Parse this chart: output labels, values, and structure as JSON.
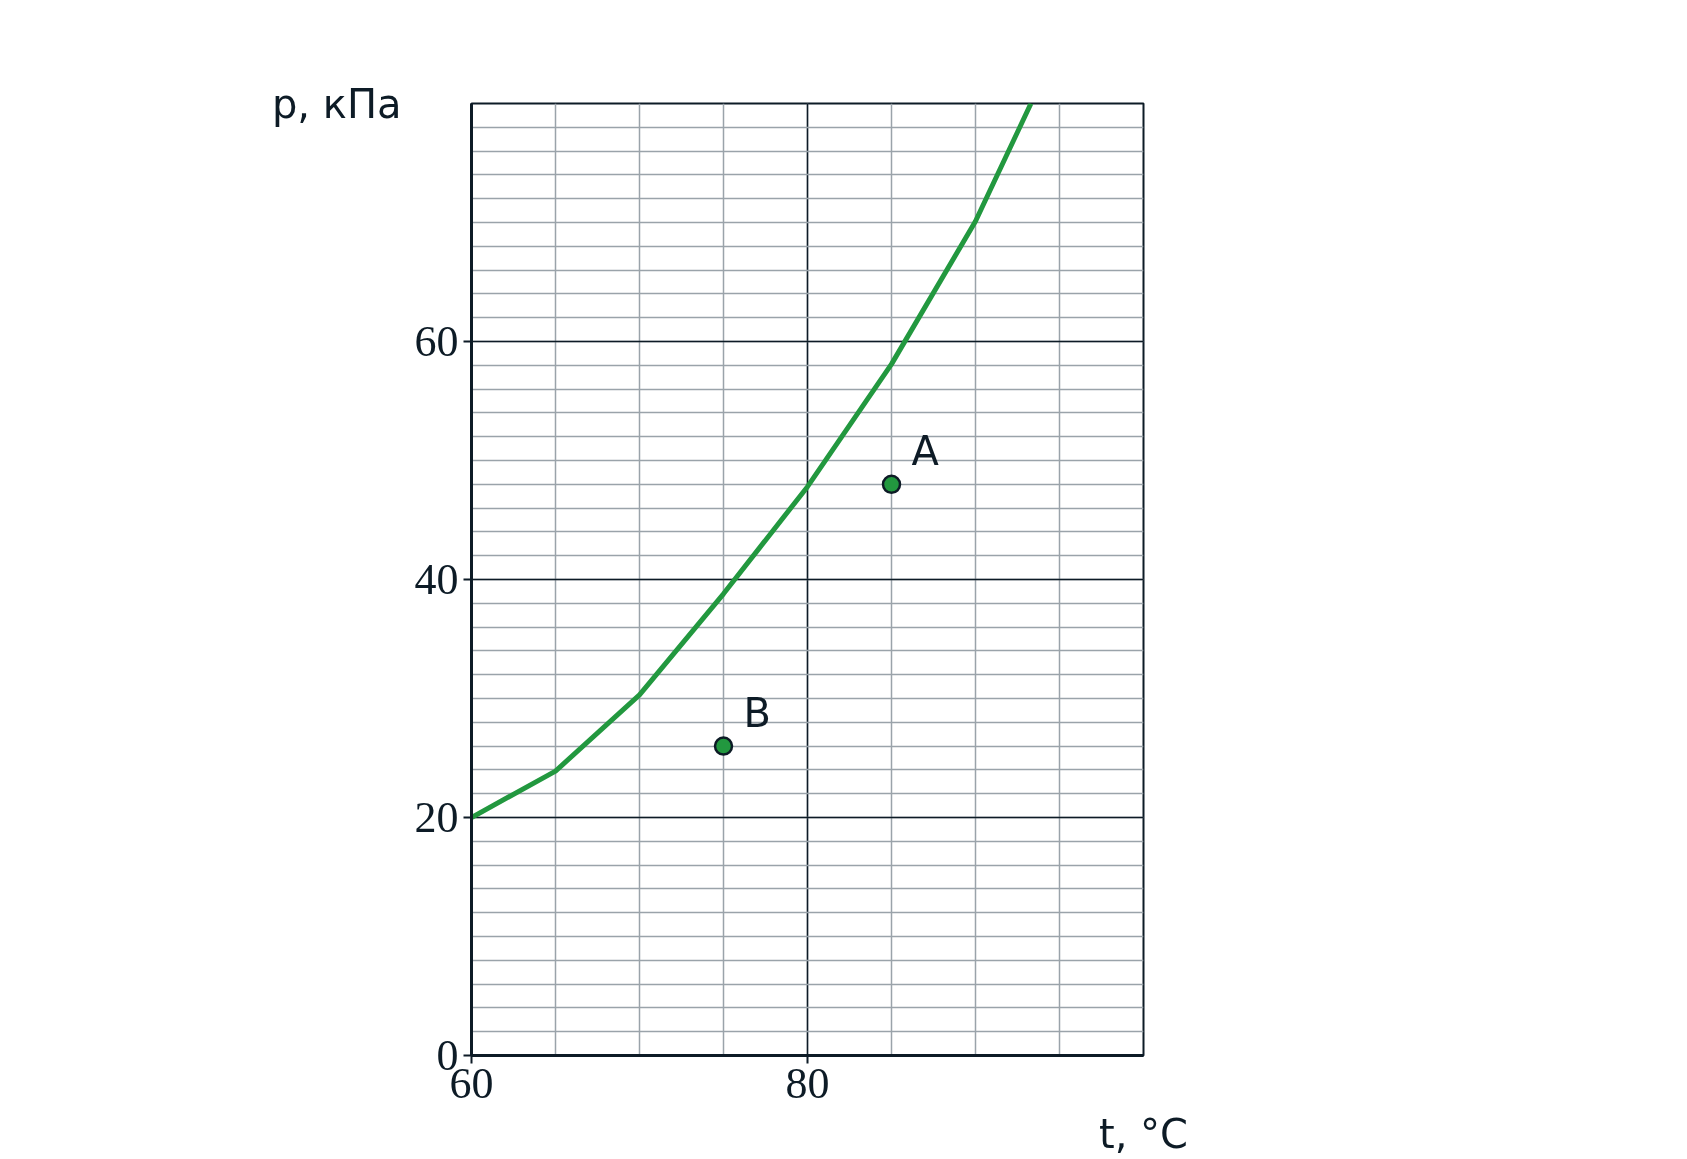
{
  "chart_data": {
    "type": "line",
    "xlabel": "t, °C",
    "ylabel": "p, кПа",
    "xlim": [
      60,
      100
    ],
    "ylim": [
      0,
      80
    ],
    "xticks": [
      60,
      80
    ],
    "yticks": [
      0,
      20,
      40,
      60
    ],
    "grid": true,
    "series": [
      {
        "color": "#22983f",
        "x": [
          60,
          65,
          70,
          75,
          80,
          85,
          90,
          93.3
        ],
        "values": [
          20,
          23.9,
          30.3,
          38.8,
          47.8,
          58.1,
          70.1,
          80
        ]
      },
      {
        "type": "scatter",
        "color": "#22983f",
        "marker": "circle",
        "x": [
          85,
          75
        ],
        "values": [
          48,
          26
        ]
      }
    ],
    "annotations": [
      {
        "text": "A",
        "x": 85,
        "y": 48
      },
      {
        "text": "B",
        "x": 75,
        "y": 26
      }
    ]
  }
}
